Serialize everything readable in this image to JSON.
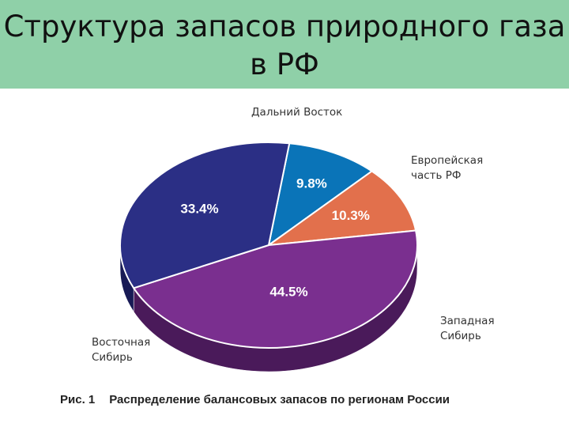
{
  "slide": {
    "title": "Структура запасов природного газа\nв РФ",
    "caption_number": "Рис. 1",
    "caption_text": "Распределение балансовых запасов по регионам России"
  },
  "colors": {
    "title_bar": "#8fd0a8",
    "far_east": "#0a74b8",
    "european": "#e2704c",
    "west_siberia": "#7a2f8f",
    "east_siberia": "#2b2f85"
  },
  "chart_data": {
    "type": "pie",
    "title": "",
    "slices": [
      {
        "label": "Дальний Восток",
        "value": 9.8,
        "value_label": "9.8%",
        "color": "#0a74b8",
        "side": "#064f80"
      },
      {
        "label": "Европейская\nчасть РФ",
        "value": 10.3,
        "value_label": "10.3%",
        "color": "#e2704c",
        "side": "#a84a2e"
      },
      {
        "label": "Западная\nСибирь",
        "value": 44.5,
        "value_label": "44.5%",
        "color": "#7a2f8f",
        "side": "#4a1a5a"
      },
      {
        "label": "Восточная\nСибирь",
        "value": 33.4,
        "value_label": "33.4%",
        "color": "#2b2f85",
        "side": "#181a55"
      }
    ]
  }
}
